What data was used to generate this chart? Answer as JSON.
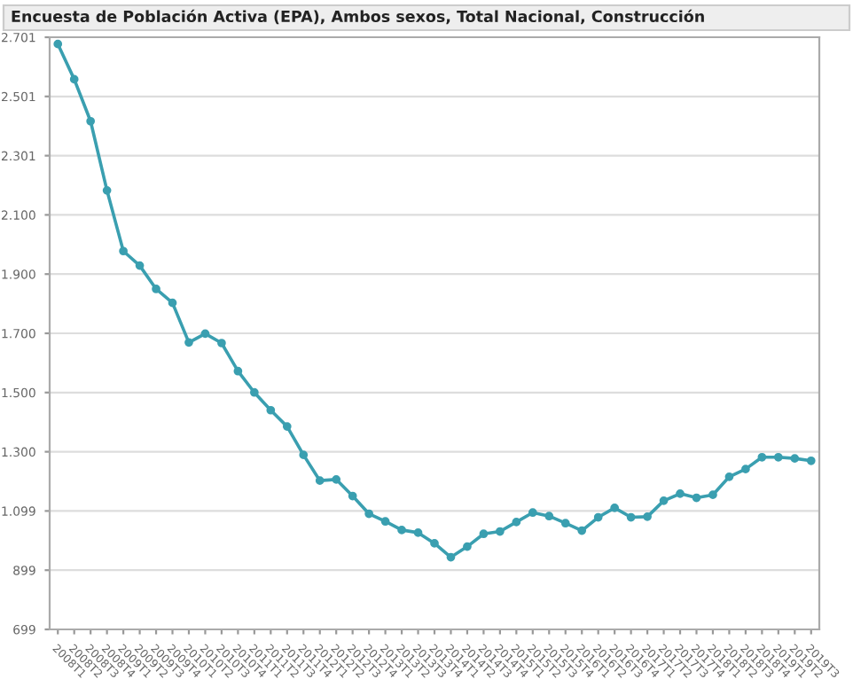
{
  "chart_data": {
    "type": "line",
    "title": "Encuesta de Población Activa (EPA), Ambos sexos, Total Nacional, Construcción",
    "categories": [
      "2008T1",
      "2008T2",
      "2008T3",
      "2008T4",
      "2009T1",
      "2009T2",
      "2009T3",
      "2009T4",
      "2010T1",
      "2010T2",
      "2010T3",
      "2010T4",
      "2011T1",
      "2011T2",
      "2011T3",
      "2011T4",
      "2012T1",
      "2012T2",
      "2012T3",
      "2012T4",
      "2013T1",
      "2013T2",
      "2013T3",
      "2013T4",
      "2014T1",
      "2014T2",
      "2014T3",
      "2014T4",
      "2015T1",
      "2015T2",
      "2015T3",
      "2015T4",
      "2016T1",
      "2016T2",
      "2016T3",
      "2016T4",
      "2017T1",
      "2017T2",
      "2017T3",
      "2017T4",
      "2018T1",
      "2018T2",
      "2018T3",
      "2018T4",
      "2019T1",
      "2019T2",
      "2019T3"
    ],
    "series": [
      {
        "color": "#3a9fb0",
        "values": [
          2678,
          2559,
          2417,
          2183,
          1978,
          1929,
          1850,
          1803,
          1669,
          1699,
          1667,
          1572,
          1500,
          1440,
          1385,
          1289,
          1202,
          1206,
          1150,
          1090,
          1064,
          1035,
          1026,
          990,
          943,
          979,
          1022,
          1030,
          1062,
          1094,
          1082,
          1058,
          1033,
          1078,
          1110,
          1078,
          1080,
          1134,
          1158,
          1144,
          1154,
          1215,
          1241,
          1281,
          1281,
          1277,
          1269
        ]
      }
    ],
    "ylim": [
      699,
      2701
    ],
    "yticks": [
      699,
      {
        "value": 899.2,
        "label": "899"
      },
      {
        "value": 1099.4,
        "label": "1.099"
      },
      {
        "value": 1299.6,
        "label": "1.300"
      },
      {
        "value": 1499.8,
        "label": "1.500"
      },
      {
        "value": 1700,
        "label": "1.700"
      },
      {
        "value": 1900.2,
        "label": "1.900"
      },
      {
        "value": 2100.4,
        "label": "2.100"
      },
      {
        "value": 2300.6,
        "label": "2.301"
      },
      {
        "value": 2500.8,
        "label": "2.501"
      },
      {
        "value": 2701,
        "label": "2.701"
      }
    ],
    "grid": "y",
    "marker": "circle",
    "line_style": "solid",
    "legend": false
  }
}
